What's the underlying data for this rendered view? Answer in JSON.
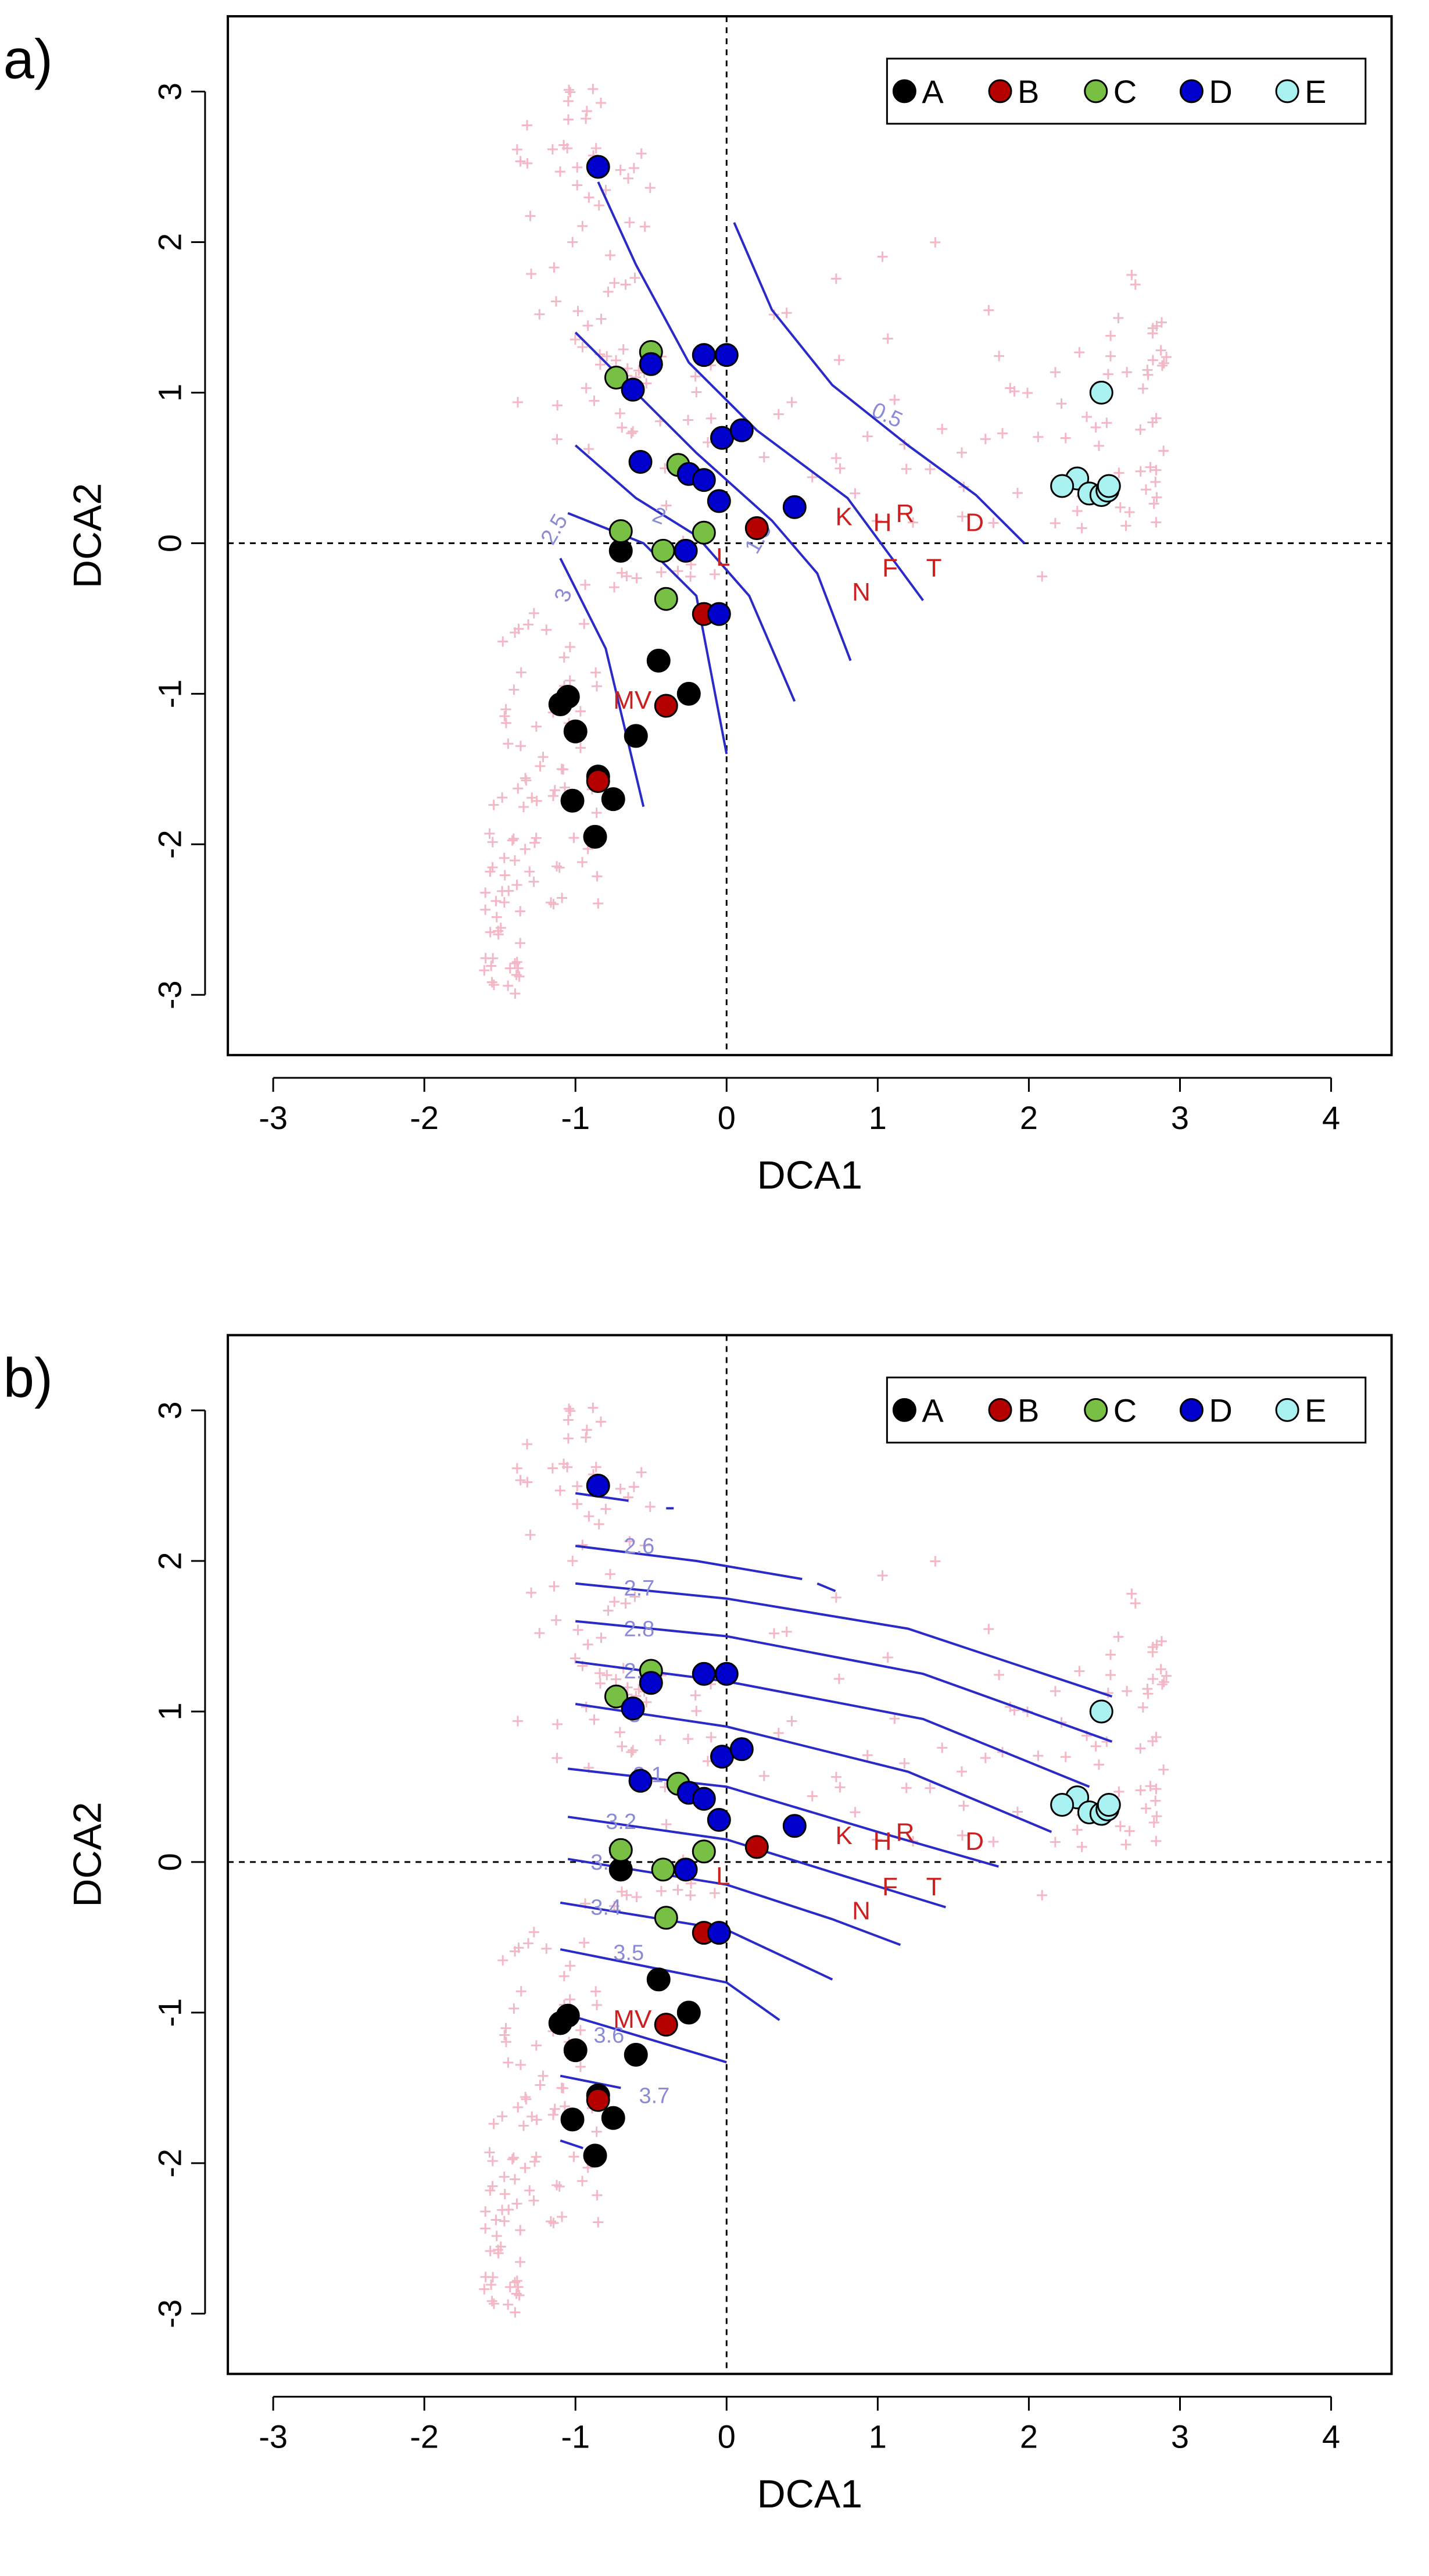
{
  "colors": {
    "A": "#000000",
    "B": "#b50000",
    "C": "#78c043",
    "D": "#0000cc",
    "E": "#aaf2f2",
    "background_points": "#f2b8c6",
    "contour": "#2a2ac8",
    "contour_label": "#8a8ad8",
    "species": "#cc1f1f"
  },
  "chart_data": [
    {
      "type": "scatter",
      "panel_label": "a)",
      "xlabel": "DCA1",
      "ylabel": "DCA2",
      "xlim": [
        -3.3,
        4.4
      ],
      "ylim": [
        -3.4,
        3.5
      ],
      "xticks": [
        "-3",
        "-2",
        "-1",
        "0",
        "1",
        "2",
        "3",
        "4"
      ],
      "yticks": [
        "-3",
        "-2",
        "-1",
        "0",
        "1",
        "2",
        "3"
      ],
      "xtick_values": [
        -3,
        -2,
        -1,
        0,
        1,
        2,
        3,
        4
      ],
      "ytick_values": [
        -3,
        -2,
        -1,
        0,
        1,
        2,
        3
      ],
      "legend": {
        "position": "top-right",
        "entries": [
          "A",
          "B",
          "C",
          "D",
          "E"
        ]
      },
      "series": [
        {
          "name": "A",
          "points": [
            [
              -0.7,
              -0.05
            ],
            [
              -0.45,
              -0.78
            ],
            [
              -0.25,
              -1.0
            ],
            [
              -1.1,
              -1.07
            ],
            [
              -1.05,
              -1.02
            ],
            [
              -1.0,
              -1.25
            ],
            [
              -0.6,
              -1.28
            ],
            [
              -0.85,
              -1.55
            ],
            [
              -0.75,
              -1.7
            ],
            [
              -1.02,
              -1.71
            ],
            [
              -0.87,
              -1.95
            ]
          ]
        },
        {
          "name": "B",
          "points": [
            [
              0.2,
              0.1
            ],
            [
              -0.15,
              -0.47
            ],
            [
              -0.4,
              -1.08
            ],
            [
              -0.85,
              -1.58
            ]
          ]
        },
        {
          "name": "C",
          "points": [
            [
              -0.5,
              1.27
            ],
            [
              -0.73,
              1.1
            ],
            [
              -0.32,
              0.52
            ],
            [
              -0.7,
              0.08
            ],
            [
              -0.15,
              0.07
            ],
            [
              -0.42,
              -0.05
            ],
            [
              -0.4,
              -0.37
            ]
          ]
        },
        {
          "name": "D",
          "points": [
            [
              -0.85,
              2.5
            ],
            [
              -0.15,
              1.25
            ],
            [
              0.0,
              1.25
            ],
            [
              -0.5,
              1.19
            ],
            [
              -0.62,
              1.02
            ],
            [
              -0.03,
              0.7
            ],
            [
              0.1,
              0.75
            ],
            [
              -0.57,
              0.54
            ],
            [
              -0.25,
              0.46
            ],
            [
              -0.15,
              0.42
            ],
            [
              -0.05,
              0.28
            ],
            [
              0.45,
              0.24
            ],
            [
              -0.27,
              -0.05
            ],
            [
              -0.05,
              -0.47
            ]
          ]
        },
        {
          "name": "E",
          "points": [
            [
              2.48,
              1.0
            ],
            [
              2.32,
              0.43
            ],
            [
              2.22,
              0.38
            ],
            [
              2.4,
              0.33
            ],
            [
              2.48,
              0.32
            ],
            [
              2.52,
              0.35
            ],
            [
              2.53,
              0.38
            ]
          ]
        }
      ],
      "species_labels": [
        {
          "text": "K",
          "x": 0.72,
          "y": 0.12
        },
        {
          "text": "H",
          "x": 0.97,
          "y": 0.08
        },
        {
          "text": "R",
          "x": 1.12,
          "y": 0.14
        },
        {
          "text": "D",
          "x": 1.58,
          "y": 0.08
        },
        {
          "text": "L",
          "x": -0.07,
          "y": -0.15
        },
        {
          "text": "N",
          "x": 0.83,
          "y": -0.38
        },
        {
          "text": "F",
          "x": 1.03,
          "y": -0.22
        },
        {
          "text": "T",
          "x": 1.32,
          "y": -0.22
        },
        {
          "text": "MV",
          "x": -0.75,
          "y": -1.1
        }
      ],
      "contours": [
        {
          "label": "0.5",
          "label_at": [
            0.95,
            0.85
          ],
          "label_angle": 25,
          "points": [
            [
              0.05,
              2.13
            ],
            [
              0.3,
              1.55
            ],
            [
              0.7,
              1.05
            ],
            [
              1.2,
              0.65
            ],
            [
              1.65,
              0.32
            ],
            [
              1.97,
              0.0
            ]
          ]
        },
        {
          "label": "",
          "points": [
            [
              -0.85,
              2.4
            ],
            [
              -0.6,
              1.85
            ],
            [
              -0.25,
              1.2
            ],
            [
              0.2,
              0.75
            ],
            [
              0.8,
              0.3
            ],
            [
              1.3,
              -0.38
            ]
          ]
        },
        {
          "label": "",
          "points": [
            [
              -1.0,
              1.4
            ],
            [
              -0.6,
              1.0
            ],
            [
              -0.2,
              0.6
            ],
            [
              0.3,
              0.15
            ],
            [
              0.6,
              -0.2
            ],
            [
              0.82,
              -0.78
            ]
          ]
        },
        {
          "label": "1.5",
          "label_at": [
            0.2,
            -0.08
          ],
          "label_angle": -60,
          "points": [
            [
              -1.0,
              0.65
            ],
            [
              -0.6,
              0.3
            ],
            [
              -0.2,
              0.05
            ],
            [
              0.15,
              -0.35
            ],
            [
              0.45,
              -1.05
            ]
          ]
        },
        {
          "label": "2",
          "label_at": [
            -0.5,
            0.15
          ],
          "label_angle": 20,
          "points": [
            [
              -1.05,
              0.2
            ],
            [
              -0.55,
              0.0
            ],
            [
              -0.2,
              -0.35
            ],
            [
              0.0,
              -1.4
            ]
          ]
        },
        {
          "label": "2.5",
          "label_at": [
            -1.15,
            -0.02
          ],
          "label_angle": -60,
          "points": [
            [
              -1.1,
              -0.1
            ],
            [
              -0.8,
              -0.7
            ],
            [
              -0.55,
              -1.75
            ]
          ]
        },
        {
          "label": "3",
          "label_at": [
            -1.05,
            -0.4
          ],
          "label_angle": -70,
          "points": [
            [
              -1.15,
              -0.45
            ]
          ]
        }
      ]
    },
    {
      "type": "scatter",
      "panel_label": "b)",
      "xlabel": "DCA1",
      "ylabel": "DCA2",
      "xlim": [
        -3.3,
        4.4
      ],
      "ylim": [
        -3.4,
        3.5
      ],
      "xticks": [
        "-3",
        "-2",
        "-1",
        "0",
        "1",
        "2",
        "3",
        "4"
      ],
      "yticks": [
        "-3",
        "-2",
        "-1",
        "0",
        "1",
        "2",
        "3"
      ],
      "xtick_values": [
        -3,
        -2,
        -1,
        0,
        1,
        2,
        3,
        4
      ],
      "ytick_values": [
        -3,
        -2,
        -1,
        0,
        1,
        2,
        3
      ],
      "legend": {
        "position": "top-right",
        "entries": [
          "A",
          "B",
          "C",
          "D",
          "E"
        ]
      },
      "series": [
        {
          "name": "A",
          "points": [
            [
              -0.7,
              -0.05
            ],
            [
              -0.45,
              -0.78
            ],
            [
              -0.25,
              -1.0
            ],
            [
              -1.1,
              -1.07
            ],
            [
              -1.05,
              -1.02
            ],
            [
              -1.0,
              -1.25
            ],
            [
              -0.6,
              -1.28
            ],
            [
              -0.85,
              -1.55
            ],
            [
              -0.75,
              -1.7
            ],
            [
              -1.02,
              -1.71
            ],
            [
              -0.87,
              -1.95
            ]
          ]
        },
        {
          "name": "B",
          "points": [
            [
              0.2,
              0.1
            ],
            [
              -0.15,
              -0.47
            ],
            [
              -0.4,
              -1.08
            ],
            [
              -0.85,
              -1.58
            ]
          ]
        },
        {
          "name": "C",
          "points": [
            [
              -0.5,
              1.27
            ],
            [
              -0.73,
              1.1
            ],
            [
              -0.32,
              0.52
            ],
            [
              -0.7,
              0.08
            ],
            [
              -0.15,
              0.07
            ],
            [
              -0.42,
              -0.05
            ],
            [
              -0.4,
              -0.37
            ]
          ]
        },
        {
          "name": "D",
          "points": [
            [
              -0.85,
              2.5
            ],
            [
              -0.15,
              1.25
            ],
            [
              0.0,
              1.25
            ],
            [
              -0.5,
              1.19
            ],
            [
              -0.62,
              1.02
            ],
            [
              -0.03,
              0.7
            ],
            [
              0.1,
              0.75
            ],
            [
              -0.57,
              0.54
            ],
            [
              -0.25,
              0.46
            ],
            [
              -0.15,
              0.42
            ],
            [
              -0.05,
              0.28
            ],
            [
              0.45,
              0.24
            ],
            [
              -0.27,
              -0.05
            ],
            [
              -0.05,
              -0.47
            ]
          ]
        },
        {
          "name": "E",
          "points": [
            [
              2.48,
              1.0
            ],
            [
              2.32,
              0.43
            ],
            [
              2.22,
              0.38
            ],
            [
              2.4,
              0.33
            ],
            [
              2.48,
              0.32
            ],
            [
              2.52,
              0.35
            ],
            [
              2.53,
              0.38
            ]
          ]
        }
      ],
      "species_labels": [
        {
          "text": "K",
          "x": 0.72,
          "y": 0.12
        },
        {
          "text": "H",
          "x": 0.97,
          "y": 0.08
        },
        {
          "text": "R",
          "x": 1.12,
          "y": 0.14
        },
        {
          "text": "D",
          "x": 1.58,
          "y": 0.08
        },
        {
          "text": "L",
          "x": -0.07,
          "y": -0.15
        },
        {
          "text": "N",
          "x": 0.83,
          "y": -0.38
        },
        {
          "text": "F",
          "x": 1.03,
          "y": -0.22
        },
        {
          "text": "T",
          "x": 1.32,
          "y": -0.22
        },
        {
          "text": "MV",
          "x": -0.75,
          "y": -1.1
        }
      ],
      "contours": [
        {
          "label": "",
          "points": [
            [
              -1.0,
              2.45
            ],
            [
              -0.65,
              2.4
            ]
          ]
        },
        {
          "label": "",
          "points": [
            [
              -0.4,
              2.35
            ],
            [
              -0.35,
              2.35
            ]
          ]
        },
        {
          "label": "2.6",
          "label_at": [
            -0.68,
            2.05
          ],
          "label_angle": 0,
          "points": [
            [
              -1.0,
              2.1
            ],
            [
              -0.2,
              2.0
            ],
            [
              0.5,
              1.88
            ]
          ]
        },
        {
          "label": "",
          "points": [
            [
              0.6,
              1.85
            ],
            [
              0.72,
              1.8
            ]
          ]
        },
        {
          "label": "2.7",
          "label_at": [
            -0.68,
            1.77
          ],
          "label_angle": 0,
          "points": [
            [
              -1.0,
              1.85
            ],
            [
              0.0,
              1.75
            ],
            [
              1.2,
              1.55
            ],
            [
              2.55,
              1.1
            ]
          ]
        },
        {
          "label": "2.8",
          "label_at": [
            -0.68,
            1.5
          ],
          "label_angle": 0,
          "points": [
            [
              -1.0,
              1.6
            ],
            [
              0.0,
              1.5
            ],
            [
              1.3,
              1.25
            ],
            [
              2.55,
              0.8
            ]
          ]
        },
        {
          "label": "2.9",
          "label_at": [
            -0.68,
            1.22
          ],
          "label_angle": 0,
          "points": [
            [
              -1.0,
              1.33
            ],
            [
              0.0,
              1.2
            ],
            [
              1.3,
              0.95
            ],
            [
              2.4,
              0.5
            ]
          ]
        },
        {
          "label": "3",
          "label_at": [
            -0.65,
            0.93
          ],
          "label_angle": 0,
          "points": [
            [
              -1.0,
              1.05
            ],
            [
              0.0,
              0.9
            ],
            [
              1.2,
              0.6
            ],
            [
              2.15,
              0.2
            ]
          ]
        },
        {
          "label": "3.1",
          "label_at": [
            -0.62,
            0.53
          ],
          "label_angle": 0,
          "points": [
            [
              -1.05,
              0.62
            ],
            [
              0.0,
              0.5
            ],
            [
              1.0,
              0.2
            ],
            [
              1.8,
              -0.03
            ]
          ]
        },
        {
          "label": "3.2",
          "label_at": [
            -0.8,
            0.22
          ],
          "label_angle": 0,
          "points": [
            [
              -1.05,
              0.3
            ],
            [
              0.0,
              0.15
            ],
            [
              0.8,
              -0.1
            ],
            [
              1.45,
              -0.3
            ]
          ]
        },
        {
          "label": "3.3",
          "label_at": [
            -0.9,
            -0.05
          ],
          "label_angle": 0,
          "points": [
            [
              -1.05,
              0.02
            ],
            [
              0.0,
              -0.15
            ],
            [
              0.7,
              -0.38
            ],
            [
              1.15,
              -0.55
            ]
          ]
        },
        {
          "label": "3.4",
          "label_at": [
            -0.9,
            -0.35
          ],
          "label_angle": 0,
          "points": [
            [
              -1.1,
              -0.27
            ],
            [
              0.0,
              -0.45
            ],
            [
              0.7,
              -0.78
            ]
          ]
        },
        {
          "label": "3.5",
          "label_at": [
            -0.75,
            -0.65
          ],
          "label_angle": 0,
          "points": [
            [
              -1.1,
              -0.58
            ],
            [
              0.0,
              -0.8
            ],
            [
              0.35,
              -1.05
            ]
          ]
        },
        {
          "label": "3.6",
          "label_at": [
            -0.88,
            -1.2
          ],
          "label_angle": 0,
          "points": [
            [
              -1.1,
              -1.0
            ],
            [
              -0.6,
              -1.15
            ],
            [
              0.0,
              -1.33
            ]
          ]
        },
        {
          "label": "3.7",
          "label_at": [
            -0.58,
            -1.6
          ],
          "label_angle": 0,
          "points": [
            [
              -1.1,
              -1.42
            ],
            [
              -0.7,
              -1.5
            ]
          ]
        },
        {
          "label": "",
          "points": [
            [
              -1.1,
              -1.85
            ],
            [
              -0.95,
              -1.9
            ]
          ]
        }
      ]
    }
  ]
}
